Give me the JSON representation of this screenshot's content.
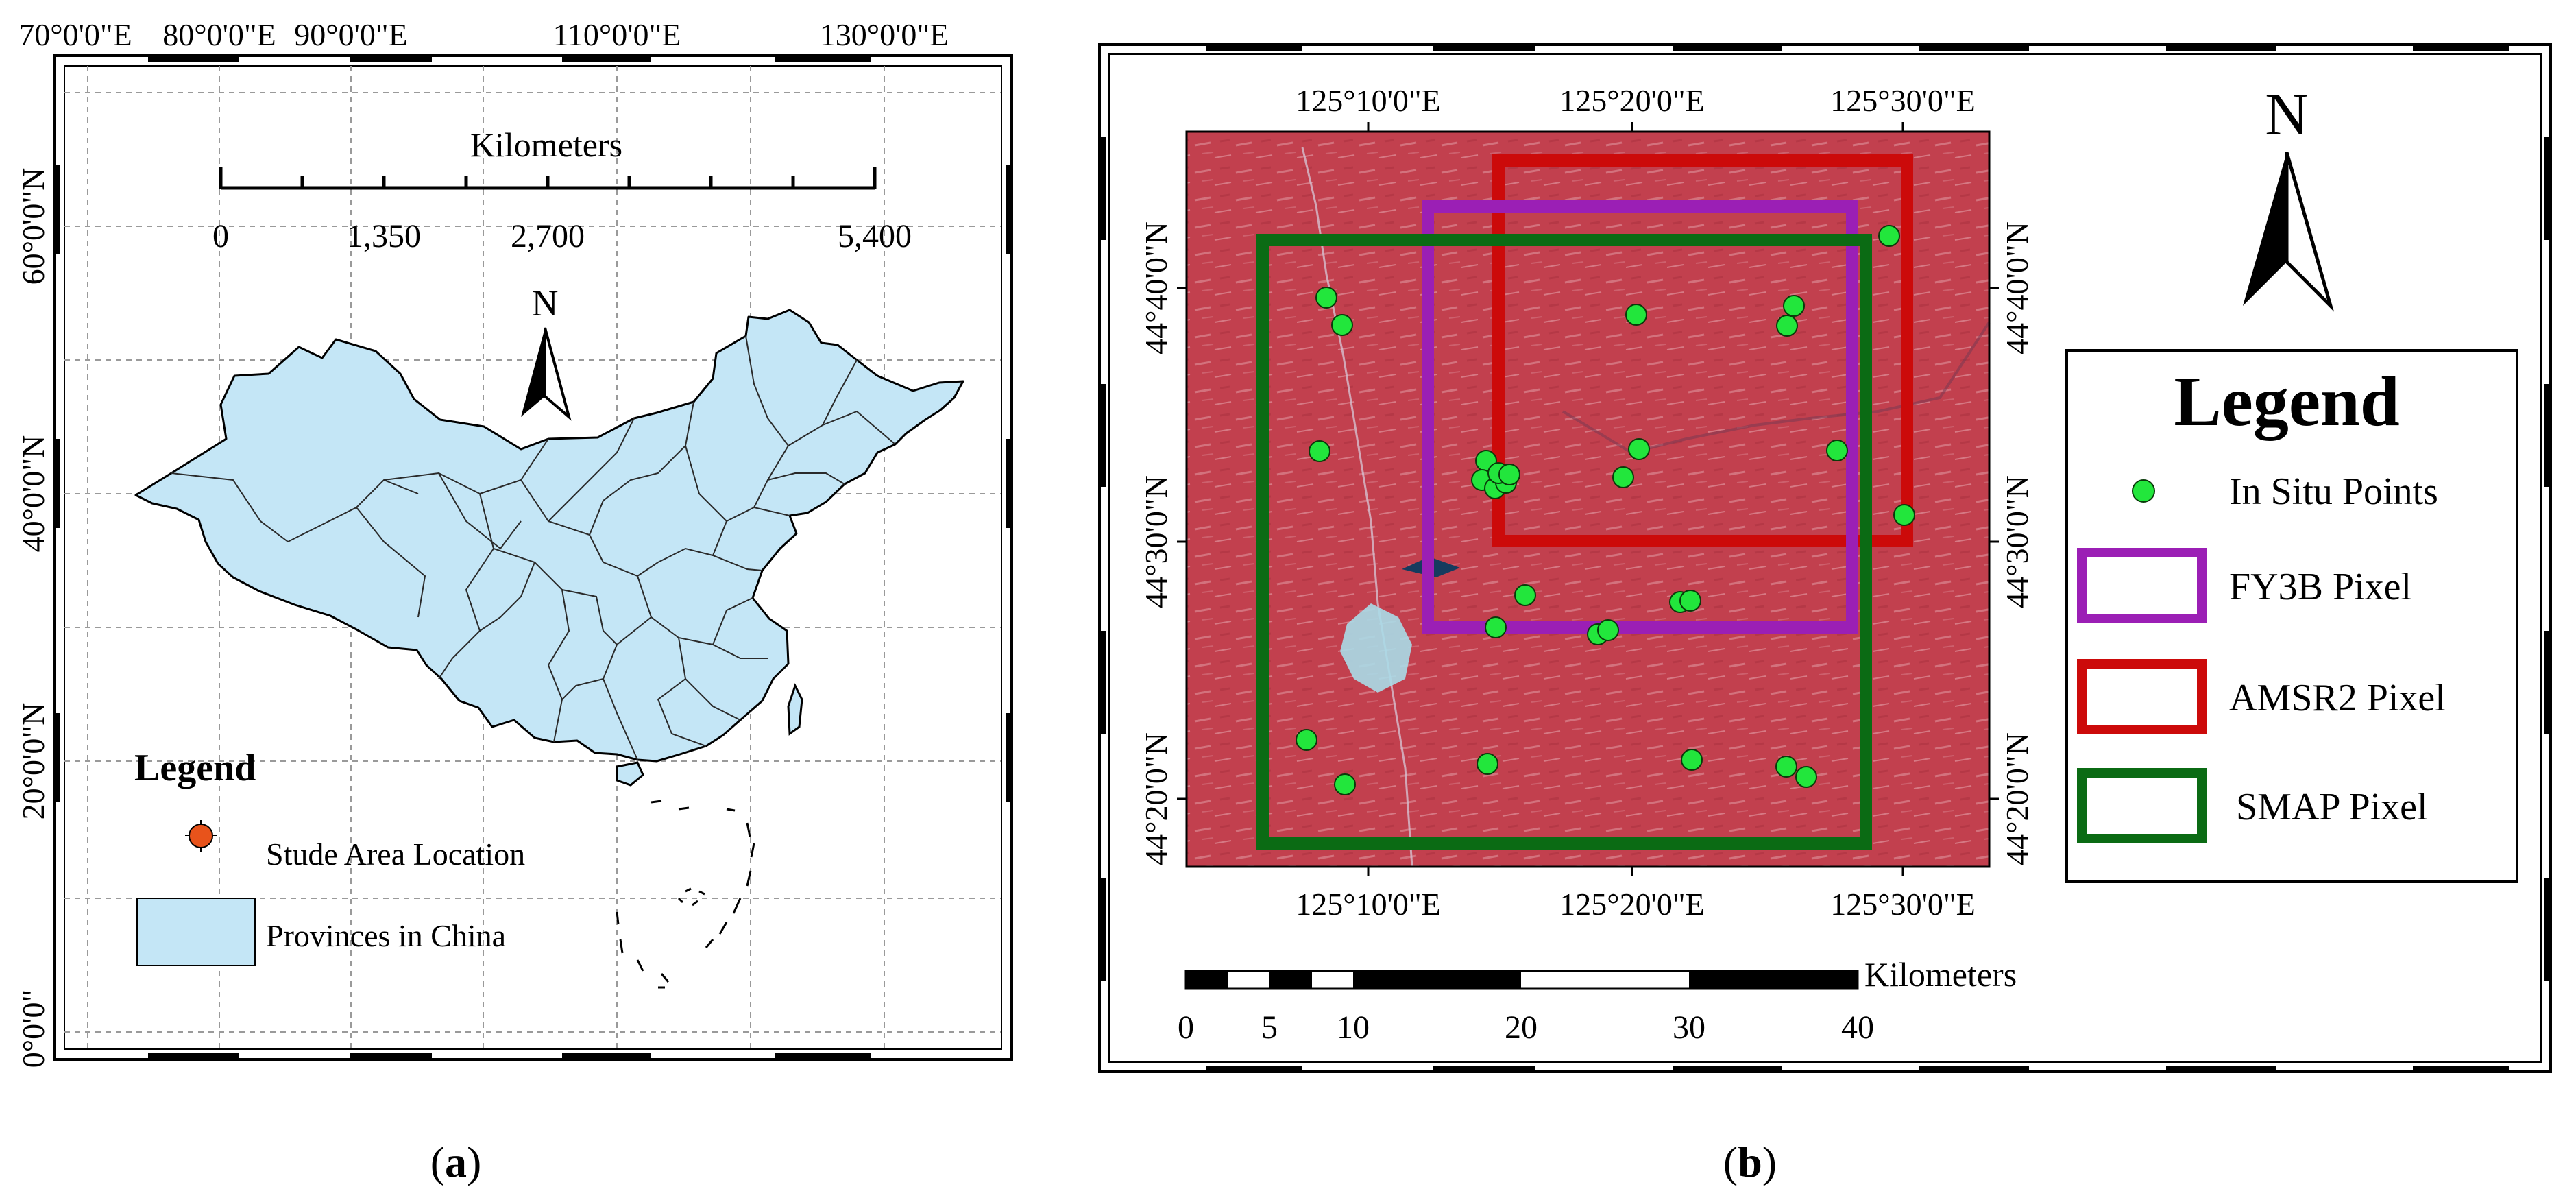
{
  "panel_a": {
    "caption_open": "(",
    "caption_letter": "a",
    "caption_close": ")",
    "top_lon_labels": [
      "70°0'0\"E",
      "80°0'0\"E",
      "90°0'0\"E",
      "110°0'0\"E",
      "130°0'0\"E"
    ],
    "left_lat_labels": [
      "60°0'0\"N",
      "40°0'0\"N",
      "20°0'0\"N",
      "0°0'0\""
    ],
    "scale_bar": {
      "title": "Kilometers",
      "ticks": [
        "0",
        "1,350",
        "2,700",
        "5,400"
      ]
    },
    "north_arrow_label": "N",
    "legend": {
      "title": "Legend",
      "items": [
        "Stude Area Location",
        "Provinces in China"
      ]
    },
    "colors": {
      "province_fill": "#c4e6f6",
      "study_area": "#e8531b"
    }
  },
  "panel_b": {
    "caption_open": "(",
    "caption_letter": "b",
    "caption_close": ")",
    "top_lon_labels": [
      "125°10'0\"E",
      "125°20'0\"E",
      "125°30'0\"E"
    ],
    "bottom_lon_labels": [
      "125°10'0\"E",
      "125°20'0\"E",
      "125°30'0\"E"
    ],
    "left_lat_labels": [
      "44°40'0\"N",
      "44°30'0\"N",
      "44°20'0\"N"
    ],
    "right_lat_labels": [
      "44°40'0\"N",
      "44°30'0\"N",
      "44°20'0\"N"
    ],
    "north_arrow_label": "N",
    "legend": {
      "title": "Legend",
      "items": [
        "In Situ Points",
        "FY3B Pixel",
        "AMSR2 Pixel",
        "SMAP Pixel"
      ]
    },
    "scale_bar": {
      "unit": "Kilometers",
      "ticks": [
        "0",
        "5",
        "10",
        "20",
        "30",
        "40"
      ]
    },
    "colors": {
      "imagery": "#c3414f",
      "points": "#22e63c",
      "fy3b": "#9b1fb5",
      "amsr2": "#cc0a0a",
      "smap": "#0b6b14"
    }
  }
}
